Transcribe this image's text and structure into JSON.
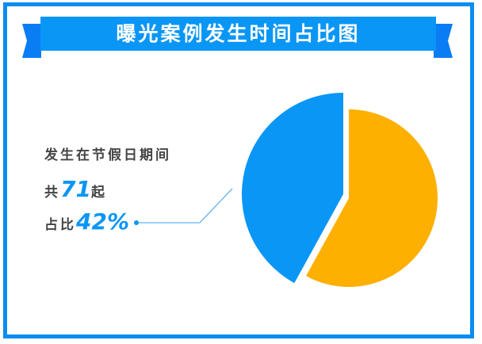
{
  "title": "曝光案例发生时间占比图",
  "annotation": {
    "line1": "发生在节假日期间",
    "count_prefix": "共",
    "count": "71",
    "count_suffix": "起",
    "pct_prefix": "占比",
    "pct": "42%"
  },
  "chart_data": {
    "type": "pie",
    "title": "曝光案例发生时间占比图",
    "slices": [
      {
        "label": "发生在节假日期间",
        "value": 42,
        "color": "#0a96f5",
        "exploded": true
      },
      {
        "label": "",
        "value": 58,
        "color": "#fdb000"
      }
    ],
    "legend": "none"
  }
}
